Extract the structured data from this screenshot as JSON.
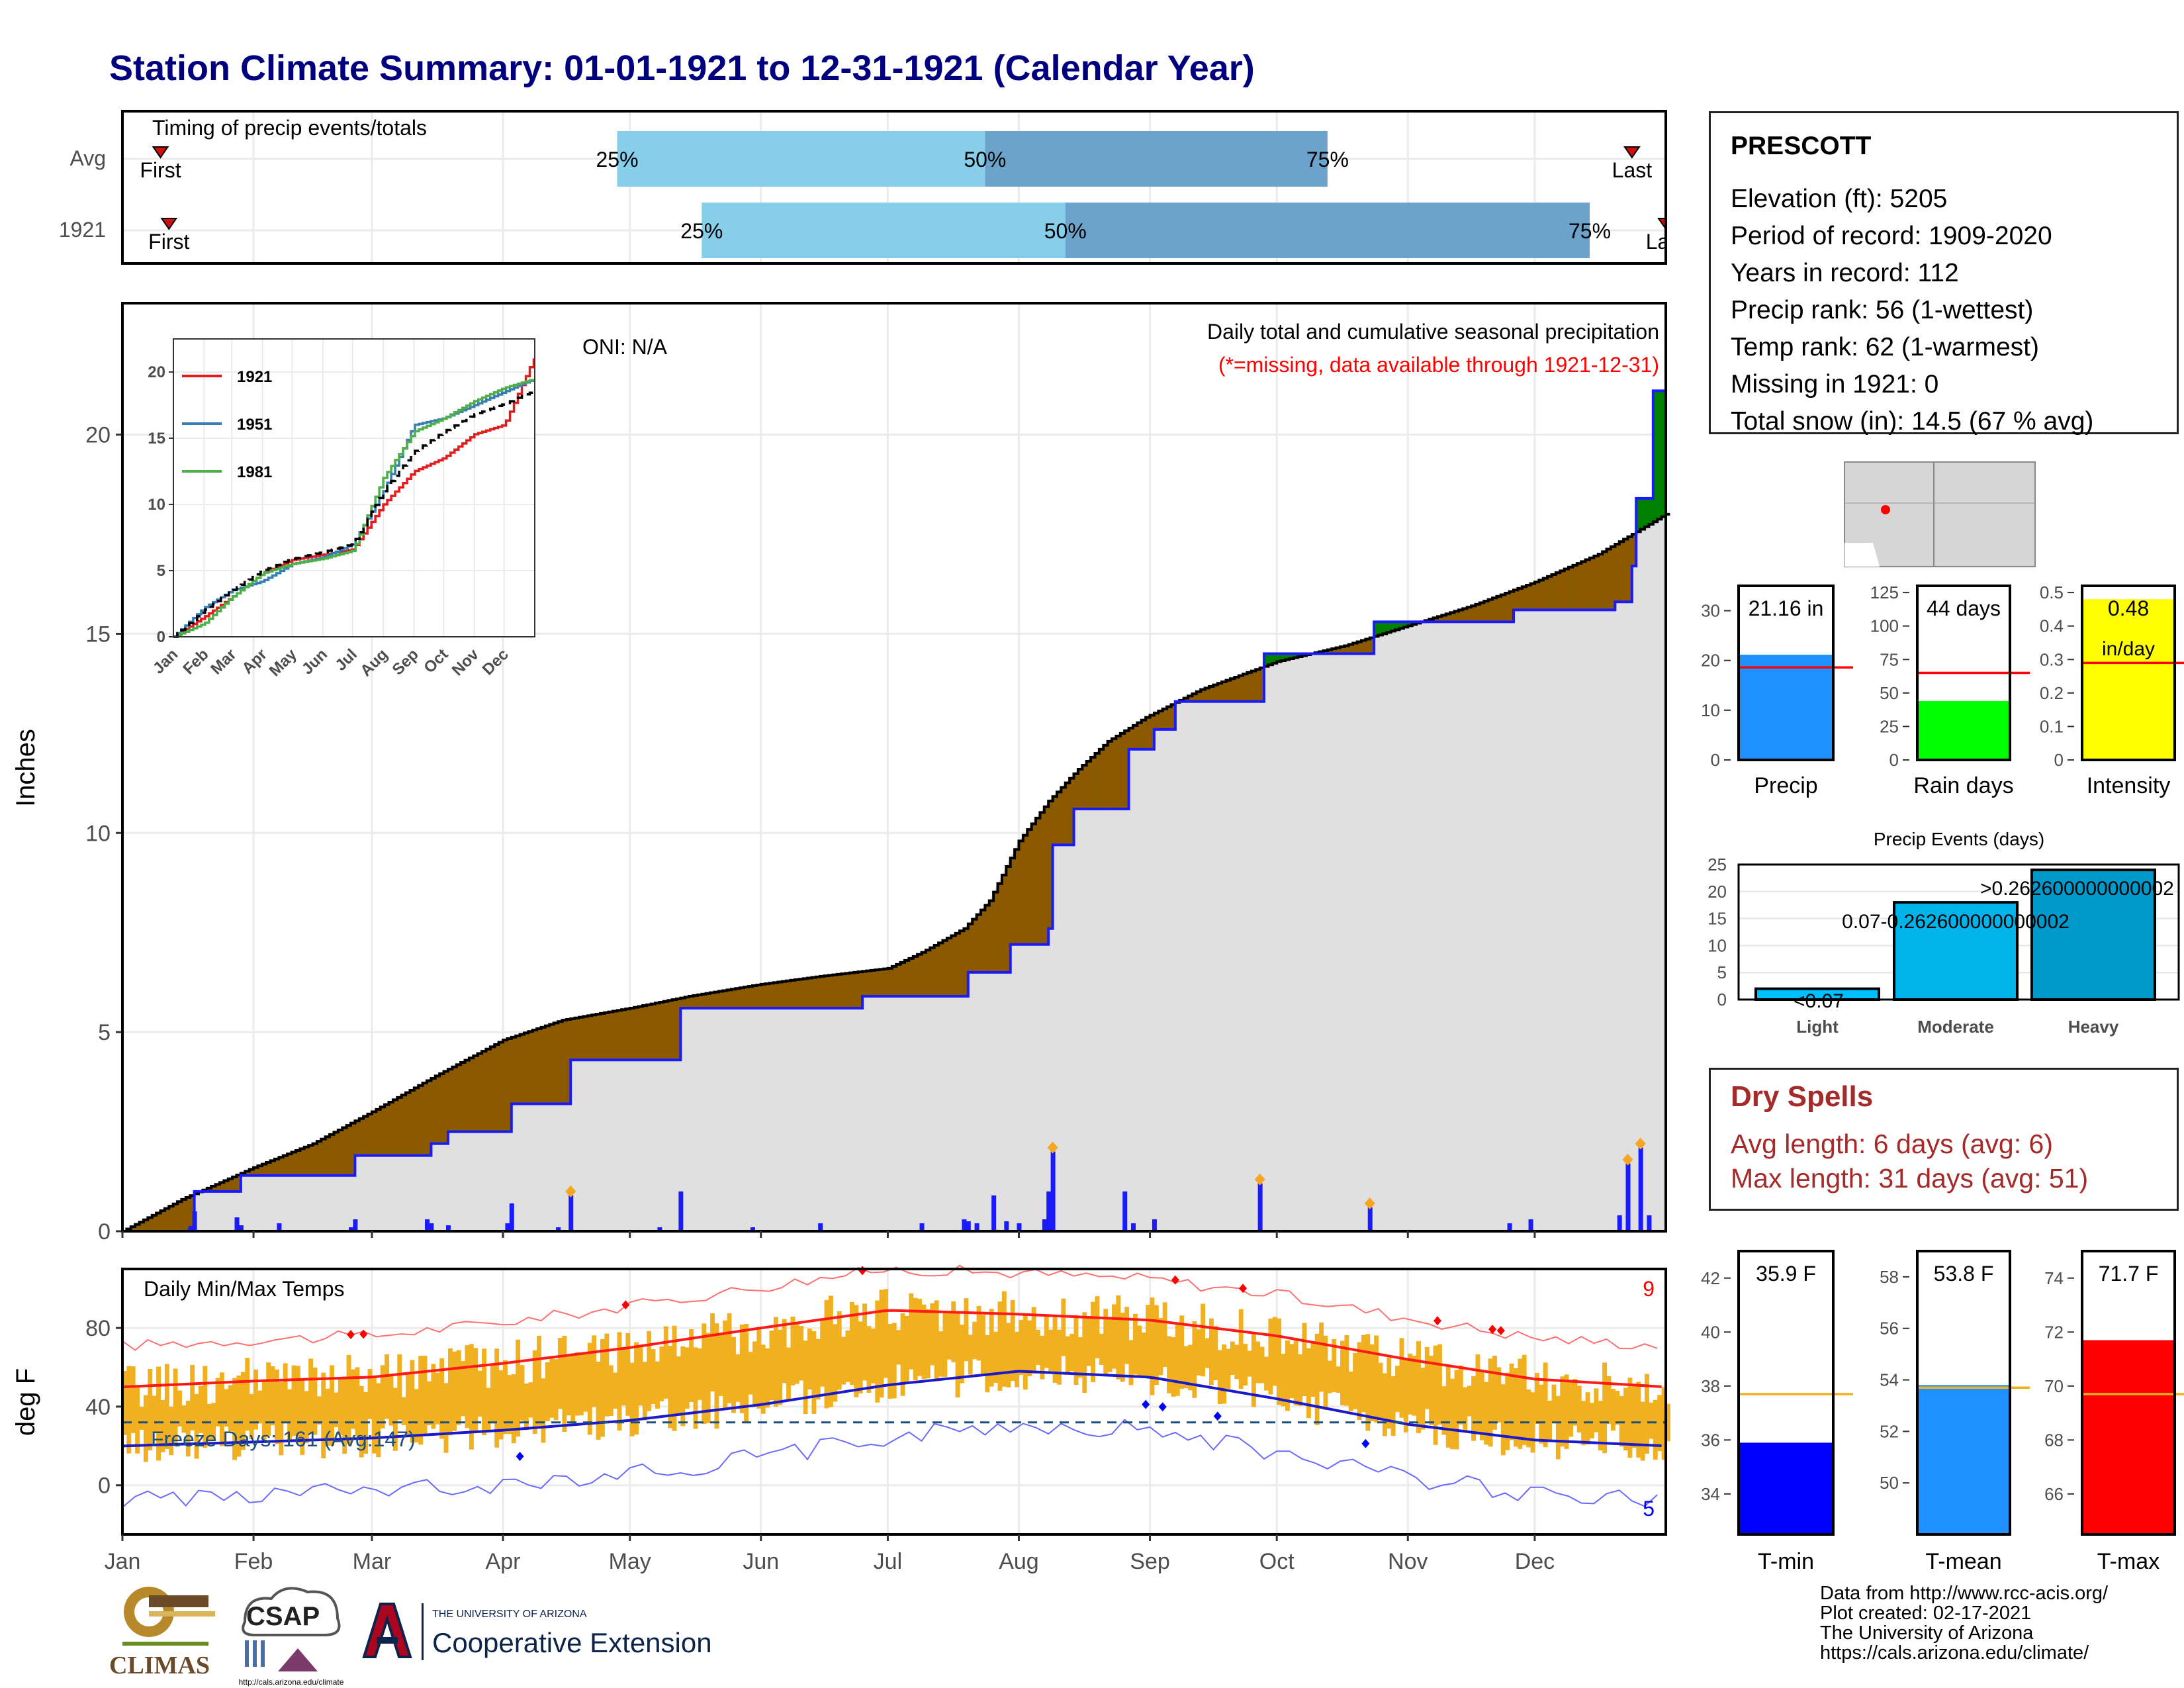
{
  "title": "Station Climate Summary: 01-01-1921 to 12-31-1921 (Calendar Year)",
  "timing_panel": {
    "label": "Timing of precip events/totals",
    "row_labels": [
      "Avg",
      "1921"
    ],
    "first_label": "First",
    "last_label": "Last",
    "percent_labels": [
      "25%",
      "50%",
      "75%"
    ]
  },
  "station": {
    "name": "PRESCOTT",
    "lines": [
      "Elevation (ft): 5205",
      "Period of record: 1909-2020",
      "Years in record: 112",
      "Precip rank: 56 (1-wettest)",
      "Temp rank: 62 (1-warmest)",
      "Missing in 1921: 0",
      "Total snow (in): 14.5 (67 % avg)"
    ]
  },
  "main_panel": {
    "ylabel": "Inches",
    "oni": "ONI: N/A",
    "subtitle": "Daily total and cumulative seasonal precipitation",
    "missing_note": "(*=missing, data available through 1921-12-31)",
    "month_labels": [
      "Jan",
      "Feb",
      "Mar",
      "Apr",
      "May",
      "Jun",
      "Jul",
      "Aug",
      "Sep",
      "Oct",
      "Nov",
      "Dec"
    ]
  },
  "inset": {
    "legend": [
      "1921",
      "1951",
      "1981"
    ],
    "colors": [
      "#e41a1c",
      "#377eb8",
      "#4daf4a"
    ],
    "month_labels": [
      "Jan",
      "Feb",
      "Mar",
      "Apr",
      "May",
      "Jun",
      "Jul",
      "Aug",
      "Sep",
      "Oct",
      "Nov",
      "Dec"
    ]
  },
  "bar_panels": {
    "precip": {
      "label": "Precip",
      "value_label": "21.16 in"
    },
    "rain_days": {
      "label": "Rain days",
      "value_label": "44 days"
    },
    "intensity": {
      "label": "Intensity",
      "value_label": "0.48",
      "unit_label": "in/day"
    }
  },
  "precip_events": {
    "title": "Precip Events (days)",
    "categories": [
      "Light",
      "Moderate",
      "Heavy"
    ],
    "moderate_label": "0.07-0.262600000000002",
    "heavy_label": ">0.262600000000002",
    "light_label": "<0.07"
  },
  "dry_spells": {
    "title": "Dry Spells",
    "avg": "Avg length: 6 days (avg: 6)",
    "max": "Max length: 31 days (avg: 51)"
  },
  "temp_panel": {
    "ylabel": "deg F",
    "title": "Daily Min/Max Temps",
    "freeze": "Freeze Days: 161 (Avg:147)",
    "record_high_count": "9",
    "record_low_count": "5"
  },
  "temp_bars": {
    "tmin": {
      "label": "T-min",
      "value_label": "35.9 F"
    },
    "tmean": {
      "label": "T-mean",
      "value_label": "53.8 F"
    },
    "tmax": {
      "label": "T-max",
      "value_label": "71.7 F"
    }
  },
  "credits": [
    "Data from http://www.rcc-acis.org/",
    "Plot created: 02-17-2021",
    "The University of Arizona",
    "https://cals.arizona.edu/climate/"
  ],
  "logos": {
    "climas": "CLIMAS",
    "csap": "CSAP",
    "ua_small": "THE UNIVERSITY OF ARIZONA",
    "ua_big": "Cooperative Extension"
  },
  "chart_data": [
    {
      "type": "bar",
      "name": "timing",
      "rows": [
        {
          "label": "Avg",
          "first_doy": 10,
          "p25_doy": 118,
          "p50_doy": 205,
          "p75_doy": 286,
          "last_doy": 358
        },
        {
          "label": "1921",
          "first_doy": 12,
          "p25_doy": 138,
          "p50_doy": 224,
          "p75_doy": 348,
          "last_doy": 366
        }
      ],
      "xlim": [
        1,
        366
      ]
    },
    {
      "type": "area",
      "name": "cumulative_precip",
      "ylabel": "Inches",
      "ylim": [
        0,
        23
      ],
      "x_unit": "day of year",
      "avg_cumulative": [
        [
          1,
          0
        ],
        [
          15,
          0.8
        ],
        [
          32,
          1.6
        ],
        [
          46,
          2.2
        ],
        [
          60,
          3.0
        ],
        [
          75,
          3.9
        ],
        [
          91,
          4.8
        ],
        [
          105,
          5.3
        ],
        [
          121,
          5.6
        ],
        [
          135,
          5.9
        ],
        [
          152,
          6.2
        ],
        [
          166,
          6.4
        ],
        [
          182,
          6.6
        ],
        [
          190,
          7.0
        ],
        [
          200,
          7.6
        ],
        [
          206,
          8.3
        ],
        [
          213,
          9.8
        ],
        [
          220,
          10.8
        ],
        [
          227,
          11.6
        ],
        [
          234,
          12.3
        ],
        [
          243,
          12.9
        ],
        [
          256,
          13.6
        ],
        [
          274,
          14.3
        ],
        [
          290,
          14.7
        ],
        [
          305,
          15.2
        ],
        [
          320,
          15.7
        ],
        [
          335,
          16.3
        ],
        [
          350,
          17.0
        ],
        [
          366,
          18.0
        ]
      ],
      "obs_cumulative": [
        [
          1,
          0
        ],
        [
          17,
          0.1
        ],
        [
          18,
          1.0
        ],
        [
          28,
          1.0
        ],
        [
          29,
          1.4
        ],
        [
          55,
          1.4
        ],
        [
          56,
          1.9
        ],
        [
          73,
          1.9
        ],
        [
          74,
          2.2
        ],
        [
          78,
          2.5
        ],
        [
          92,
          2.5
        ],
        [
          93,
          3.2
        ],
        [
          106,
          3.2
        ],
        [
          107,
          4.3
        ],
        [
          132,
          4.3
        ],
        [
          133,
          5.6
        ],
        [
          175,
          5.6
        ],
        [
          176,
          5.9
        ],
        [
          200,
          5.9
        ],
        [
          201,
          6.5
        ],
        [
          210,
          6.5
        ],
        [
          211,
          7.2
        ],
        [
          220,
          7.6
        ],
        [
          221,
          9.7
        ],
        [
          226,
          10.6
        ],
        [
          238,
          10.6
        ],
        [
          239,
          12.1
        ],
        [
          245,
          12.6
        ],
        [
          250,
          13.3
        ],
        [
          270,
          13.3
        ],
        [
          271,
          14.5
        ],
        [
          296,
          14.5
        ],
        [
          297,
          15.3
        ],
        [
          329,
          15.3
        ],
        [
          330,
          15.6
        ],
        [
          354,
          15.8
        ],
        [
          358,
          16.7
        ],
        [
          359,
          18.4
        ],
        [
          362,
          18.4
        ],
        [
          363,
          21.1
        ],
        [
          366,
          21.16
        ]
      ],
      "daily_precip": [
        [
          17,
          0.1
        ],
        [
          18,
          0.5
        ],
        [
          28,
          0.35
        ],
        [
          29,
          0.15
        ],
        [
          38,
          0.2
        ],
        [
          55,
          0.1
        ],
        [
          56,
          0.3
        ],
        [
          73,
          0.3
        ],
        [
          74,
          0.2
        ],
        [
          78,
          0.15
        ],
        [
          92,
          0.2
        ],
        [
          93,
          0.7
        ],
        [
          104,
          0.1
        ],
        [
          107,
          0.9
        ],
        [
          128,
          0.1
        ],
        [
          133,
          1.0
        ],
        [
          150,
          0.1
        ],
        [
          166,
          0.2
        ],
        [
          190,
          0.2
        ],
        [
          200,
          0.3
        ],
        [
          201,
          0.25
        ],
        [
          203,
          0.2
        ],
        [
          207,
          0.9
        ],
        [
          210,
          0.25
        ],
        [
          213,
          0.2
        ],
        [
          219,
          0.3
        ],
        [
          220,
          1.0
        ],
        [
          221,
          2.0
        ],
        [
          238,
          1.0
        ],
        [
          240,
          0.2
        ],
        [
          245,
          0.3
        ],
        [
          270,
          1.2
        ],
        [
          296,
          0.6
        ],
        [
          329,
          0.2
        ],
        [
          334,
          0.3
        ],
        [
          355,
          0.4
        ],
        [
          357,
          1.7
        ],
        [
          360,
          2.1
        ],
        [
          362,
          0.4
        ]
      ],
      "highlight_days": [
        107,
        221,
        270,
        296,
        357,
        360
      ]
    },
    {
      "type": "line",
      "name": "inset_cumulative",
      "ylim": [
        0,
        22
      ],
      "series": [
        {
          "name": "1921",
          "values": [
            [
              1,
              0
            ],
            [
              32,
              1.5
            ],
            [
              60,
              3
            ],
            [
              91,
              4.8
            ],
            [
              121,
              5.8
            ],
            [
              152,
              6.2
            ],
            [
              182,
              6.6
            ],
            [
              213,
              10
            ],
            [
              244,
              12.5
            ],
            [
              274,
              13.5
            ],
            [
              305,
              15.3
            ],
            [
              335,
              16
            ],
            [
              366,
              21.2
            ]
          ]
        },
        {
          "name": "1951",
          "values": [
            [
              1,
              0
            ],
            [
              32,
              2.2
            ],
            [
              60,
              3.5
            ],
            [
              91,
              4.2
            ],
            [
              121,
              5.5
            ],
            [
              152,
              6.0
            ],
            [
              182,
              7.0
            ],
            [
              213,
              11
            ],
            [
              244,
              16
            ],
            [
              274,
              16.5
            ],
            [
              305,
              17.5
            ],
            [
              335,
              18.5
            ],
            [
              366,
              19.5
            ]
          ]
        },
        {
          "name": "1981",
          "values": [
            [
              1,
              0
            ],
            [
              32,
              1.0
            ],
            [
              60,
              3.0
            ],
            [
              91,
              4.8
            ],
            [
              121,
              5.5
            ],
            [
              152,
              5.9
            ],
            [
              182,
              6.5
            ],
            [
              213,
              12
            ],
            [
              244,
              15.5
            ],
            [
              274,
              16.5
            ],
            [
              305,
              17.8
            ],
            [
              335,
              18.8
            ],
            [
              366,
              19.5
            ]
          ]
        },
        {
          "name": "avg",
          "values": [
            [
              1,
              0
            ],
            [
              32,
              2.0
            ],
            [
              60,
              3.5
            ],
            [
              91,
              5.0
            ],
            [
              121,
              5.9
            ],
            [
              152,
              6.4
            ],
            [
              182,
              7.0
            ],
            [
              213,
              11
            ],
            [
              244,
              14
            ],
            [
              274,
              15.5
            ],
            [
              305,
              16.8
            ],
            [
              335,
              17.6
            ],
            [
              366,
              18.6
            ]
          ]
        }
      ]
    },
    {
      "type": "bar",
      "name": "summary_bars",
      "bars": [
        {
          "label": "Precip",
          "value": 21.16,
          "avg": 18.6,
          "ylim": [
            0,
            35
          ]
        },
        {
          "label": "Rain days",
          "value": 44,
          "avg": 65,
          "ylim": [
            0,
            130
          ]
        },
        {
          "label": "Intensity",
          "value": 0.48,
          "avg": 0.29,
          "ylim": [
            0,
            0.52
          ]
        }
      ]
    },
    {
      "type": "bar",
      "name": "precip_events",
      "categories": [
        "Light",
        "Moderate",
        "Heavy"
      ],
      "values": [
        2,
        18,
        24
      ],
      "ylim": [
        0,
        25
      ]
    },
    {
      "type": "line",
      "name": "daily_temps",
      "ylabel": "deg F",
      "ylim": [
        -25,
        110
      ],
      "avg_max": [
        [
          1,
          50
        ],
        [
          32,
          53
        ],
        [
          60,
          55
        ],
        [
          91,
          62
        ],
        [
          121,
          70
        ],
        [
          152,
          80
        ],
        [
          182,
          89
        ],
        [
          213,
          87
        ],
        [
          244,
          84
        ],
        [
          274,
          76
        ],
        [
          305,
          64
        ],
        [
          335,
          54
        ],
        [
          366,
          50
        ]
      ],
      "avg_min": [
        [
          1,
          20
        ],
        [
          32,
          22
        ],
        [
          60,
          24
        ],
        [
          91,
          28
        ],
        [
          121,
          33
        ],
        [
          152,
          41
        ],
        [
          182,
          51
        ],
        [
          213,
          58
        ],
        [
          244,
          55
        ],
        [
          274,
          44
        ],
        [
          305,
          31
        ],
        [
          335,
          23
        ],
        [
          366,
          20
        ]
      ],
      "freeze_line": 32
    },
    {
      "type": "bar",
      "name": "temp_bars",
      "bars": [
        {
          "label": "T-min",
          "value": 35.9,
          "avg": 37.7,
          "ylim": [
            32.5,
            43
          ]
        },
        {
          "label": "T-mean",
          "value": 53.8,
          "avg": 53.7,
          "ylim": [
            48,
            59
          ]
        },
        {
          "label": "T-max",
          "value": 71.7,
          "avg": 69.7,
          "ylim": [
            64.5,
            75
          ]
        }
      ]
    }
  ]
}
